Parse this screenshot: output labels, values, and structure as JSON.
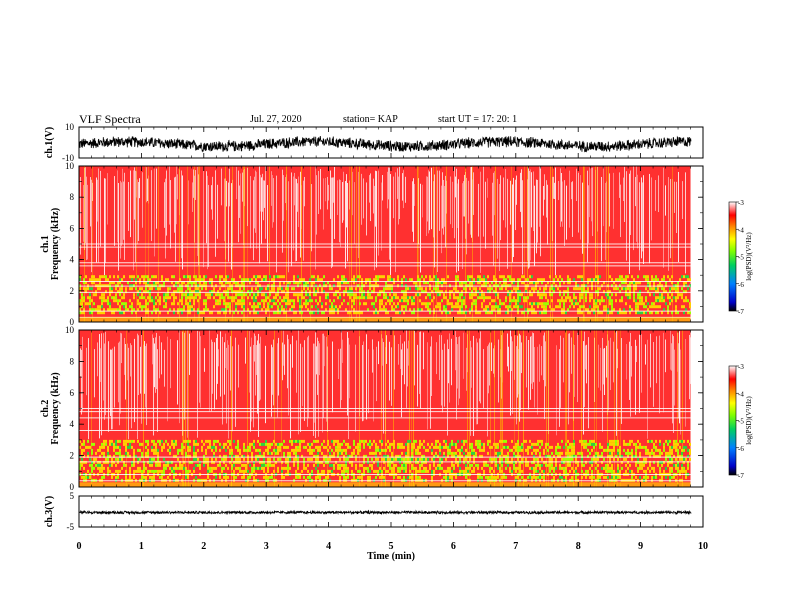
{
  "header": {
    "title": "VLF Spectra",
    "date": "Jul. 27, 2020",
    "station": "station= KAP",
    "start": "start UT =  17: 20: 1"
  },
  "chart_data": [
    {
      "type": "line",
      "name": "ch1-waveform",
      "ylabel": "ch.1(V)",
      "ylim": [
        -10,
        10
      ],
      "yticks": [
        "10",
        "-10"
      ],
      "xlim": [
        0,
        10
      ],
      "x_data_end": 9.8,
      "note_style": "dense noise centered near -1 V, amplitude about 4 V",
      "center": -1,
      "amplitude": 4
    },
    {
      "type": "heatmap",
      "name": "ch1-spectrogram",
      "ylabel": "ch.1\nFrequency (kHz)",
      "ylabel_lines": [
        "ch.1",
        "Frequency (kHz)"
      ],
      "ylim": [
        0,
        10
      ],
      "yticks": [
        "0",
        "2",
        "4",
        "6",
        "8",
        "10"
      ],
      "xlim": [
        0,
        10
      ],
      "x_data_end": 9.8,
      "horizontal_lines_khz": [
        0.3,
        0.7,
        1.9,
        2.3,
        2.6,
        3.6,
        3.8,
        4.8,
        5.0
      ],
      "active_band_khz": [
        0.5,
        3.0
      ],
      "colorbar": {
        "label": "log(PSD)(V²/Hz)",
        "range": [
          -7,
          -3
        ],
        "ticks": [
          "-3",
          "-4",
          "-5",
          "-6",
          "-7"
        ]
      }
    },
    {
      "type": "heatmap",
      "name": "ch2-spectrogram",
      "ylabel": "ch.2\nFrequency (kHz)",
      "ylabel_lines": [
        "ch.2",
        "Frequency (kHz)"
      ],
      "ylim": [
        0,
        10
      ],
      "yticks": [
        "0",
        "2",
        "4",
        "6",
        "8",
        "10"
      ],
      "xlim": [
        0,
        10
      ],
      "x_data_end": 9.8,
      "horizontal_lines_khz": [
        0.4,
        0.8,
        1.6,
        1.9,
        3.6,
        4.4,
        4.8,
        5.0
      ],
      "active_band_khz": [
        0.5,
        3.0
      ],
      "colorbar": {
        "label": "log(PSD)(V²/Hz)",
        "range": [
          -7,
          -3
        ],
        "ticks": [
          "-3",
          "-4",
          "-5",
          "-6",
          "-7"
        ]
      }
    },
    {
      "type": "line",
      "name": "ch3-waveform",
      "ylabel": "ch.3(V)",
      "ylim": [
        -5,
        5
      ],
      "yticks": [
        "5",
        "-5"
      ],
      "xlim": [
        0,
        10
      ],
      "x_data_end": 9.8,
      "center": -0.3,
      "amplitude": 0.5,
      "xlabel": "Time (min)",
      "xticks": [
        "0",
        "1",
        "2",
        "3",
        "4",
        "5",
        "6",
        "7",
        "8",
        "9",
        "10"
      ]
    }
  ]
}
